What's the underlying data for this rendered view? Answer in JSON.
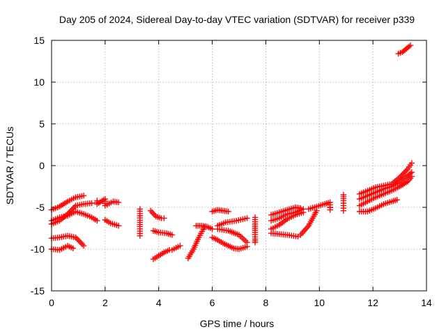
{
  "chart_data": {
    "type": "scatter",
    "title": "Day 205 of 2024, Sidereal Day-to-day VTEC variation (SDTVAR) for receiver p339",
    "xlabel": "GPS time / hours",
    "ylabel": "SDTVAR / TECUs",
    "xlim": [
      0,
      14
    ],
    "ylim": [
      -15,
      15
    ],
    "x_ticks": [
      0,
      2,
      4,
      6,
      8,
      10,
      12,
      14
    ],
    "x_tick_labels": [
      "0",
      "2",
      "4",
      "6",
      "8",
      "10",
      "12",
      "14"
    ],
    "y_ticks": [
      -15,
      -10,
      -5,
      0,
      5,
      10,
      15
    ],
    "y_tick_labels": [
      "-15",
      "-10",
      "-5",
      "0",
      "5",
      "10",
      "15"
    ],
    "grid": true,
    "marker": "plus",
    "color": "#ff0000",
    "segments": [
      {
        "x": [
          0.0,
          0.3,
          0.6,
          0.9,
          1.2
        ],
        "y": [
          -5.3,
          -4.9,
          -4.3,
          -3.8,
          -3.6
        ]
      },
      {
        "x": [
          0.0,
          0.3,
          0.6,
          0.9,
          1.2,
          1.5
        ],
        "y": [
          -7.0,
          -6.6,
          -5.8,
          -4.8,
          -4.6,
          -4.5
        ]
      },
      {
        "x": [
          0.0,
          0.3,
          0.6,
          0.9,
          1.2,
          1.5,
          1.7
        ],
        "y": [
          -6.6,
          -6.2,
          -6.0,
          -5.5,
          -5.8,
          -6.2,
          -6.6
        ]
      },
      {
        "x": [
          0.0,
          0.3,
          0.6,
          0.9,
          1.2
        ],
        "y": [
          -8.7,
          -8.6,
          -8.4,
          -8.6,
          -9.6
        ]
      },
      {
        "x": [
          0.0,
          0.3,
          0.6,
          0.8
        ],
        "y": [
          -10.0,
          -10.1,
          -9.6,
          -9.9
        ]
      },
      {
        "x": [
          1.7,
          1.7,
          2.0,
          2.0,
          2.3,
          2.5
        ],
        "y": [
          -4.2,
          -4.6,
          -4.0,
          -4.8,
          -4.3,
          -4.4
        ]
      },
      {
        "x": [
          2.0,
          2.2,
          2.5
        ],
        "y": [
          -6.5,
          -6.9,
          -7.2
        ]
      },
      {
        "x": [
          3.3,
          3.3,
          3.3,
          3.3
        ],
        "y": [
          -5.2,
          -6.8,
          -7.3,
          -8.4
        ]
      },
      {
        "x": [
          3.7,
          3.9,
          4.1,
          4.2
        ],
        "y": [
          -5.4,
          -6.1,
          -6.3,
          -6.3
        ]
      },
      {
        "x": [
          3.8,
          4.0,
          4.3,
          4.5
        ],
        "y": [
          -7.8,
          -8.0,
          -8.1,
          -8.3
        ]
      },
      {
        "x": [
          3.8,
          4.0,
          4.2,
          4.4
        ],
        "y": [
          -11.2,
          -10.8,
          -10.4,
          -10.1
        ]
      },
      {
        "x": [
          4.5,
          4.8
        ],
        "y": [
          -10.1,
          -9.6
        ]
      },
      {
        "x": [
          5.1,
          5.3,
          5.5,
          5.7
        ],
        "y": [
          -11.1,
          -10.0,
          -8.6,
          -7.4
        ]
      },
      {
        "x": [
          5.4,
          5.6,
          5.8,
          6.0
        ],
        "y": [
          -7.2,
          -7.2,
          -7.3,
          -7.6
        ]
      },
      {
        "x": [
          6.0,
          6.2,
          6.4,
          6.6,
          6.8,
          7.0,
          7.3
        ],
        "y": [
          -8.6,
          -8.9,
          -9.3,
          -9.6,
          -9.9,
          -10.0,
          -9.7
        ]
      },
      {
        "x": [
          6.0,
          6.2,
          6.4,
          6.6
        ],
        "y": [
          -5.5,
          -5.3,
          -5.4,
          -5.5
        ]
      },
      {
        "x": [
          6.2,
          6.5,
          6.9,
          7.3
        ],
        "y": [
          -7.2,
          -6.8,
          -6.6,
          -6.3
        ]
      },
      {
        "x": [
          6.2,
          6.6,
          7.0,
          7.3
        ],
        "y": [
          -7.6,
          -7.8,
          -8.3,
          -9.2
        ]
      },
      {
        "x": [
          7.6,
          7.6,
          7.6,
          7.6,
          7.6,
          7.6
        ],
        "y": [
          -6.2,
          -7.0,
          -7.5,
          -8.0,
          -8.8,
          -9.2
        ]
      },
      {
        "x": [
          8.2,
          8.5,
          8.8,
          9.1,
          9.3
        ],
        "y": [
          -5.9,
          -5.6,
          -5.3,
          -5.0,
          -5.1
        ]
      },
      {
        "x": [
          8.2,
          8.5,
          8.8,
          9.1,
          9.4
        ],
        "y": [
          -6.6,
          -6.3,
          -5.8,
          -5.6,
          -5.2
        ]
      },
      {
        "x": [
          8.2,
          8.5,
          8.8,
          9.1,
          9.4
        ],
        "y": [
          -7.6,
          -7.1,
          -6.4,
          -5.9,
          -5.6
        ]
      },
      {
        "x": [
          8.2,
          8.5,
          8.8,
          9.2
        ],
        "y": [
          -8.1,
          -8.2,
          -8.3,
          -8.5
        ]
      },
      {
        "x": [
          9.3,
          9.6,
          9.9
        ],
        "y": [
          -8.3,
          -7.2,
          -5.4
        ]
      },
      {
        "x": [
          9.6,
          9.9,
          10.2,
          10.4
        ],
        "y": [
          -5.2,
          -4.9,
          -4.6,
          -4.4
        ]
      },
      {
        "x": [
          10.4,
          10.4,
          10.4
        ],
        "y": [
          -5.0,
          -5.3,
          -4.7
        ]
      },
      {
        "x": [
          10.9,
          10.9,
          10.9,
          10.9
        ],
        "y": [
          -3.5,
          -4.2,
          -4.8,
          -5.4
        ]
      },
      {
        "x": [
          11.5,
          11.8,
          12.1,
          12.4,
          12.7,
          13.0,
          13.3,
          13.45
        ],
        "y": [
          -3.4,
          -3.0,
          -2.6,
          -2.4,
          -2.2,
          -1.4,
          -0.4,
          0.3
        ]
      },
      {
        "x": [
          11.5,
          11.8,
          12.1,
          12.4,
          12.7,
          13.0,
          13.3,
          13.45
        ],
        "y": [
          -4.0,
          -3.6,
          -3.2,
          -2.8,
          -2.5,
          -2.0,
          -1.2,
          -0.8
        ]
      },
      {
        "x": [
          11.5,
          11.8,
          12.1,
          12.4,
          12.7,
          13.0,
          13.3,
          13.45
        ],
        "y": [
          -4.8,
          -4.3,
          -3.8,
          -3.4,
          -3.0,
          -2.5,
          -1.9,
          -1.3
        ]
      },
      {
        "x": [
          11.5,
          11.8,
          12.1,
          12.4,
          12.7,
          12.9
        ],
        "y": [
          -5.5,
          -5.5,
          -5.1,
          -4.6,
          -4.3,
          -4.1
        ]
      },
      {
        "x": [
          12.95,
          13.1,
          13.25,
          13.4
        ],
        "y": [
          13.4,
          13.6,
          14.0,
          14.4
        ]
      }
    ]
  }
}
